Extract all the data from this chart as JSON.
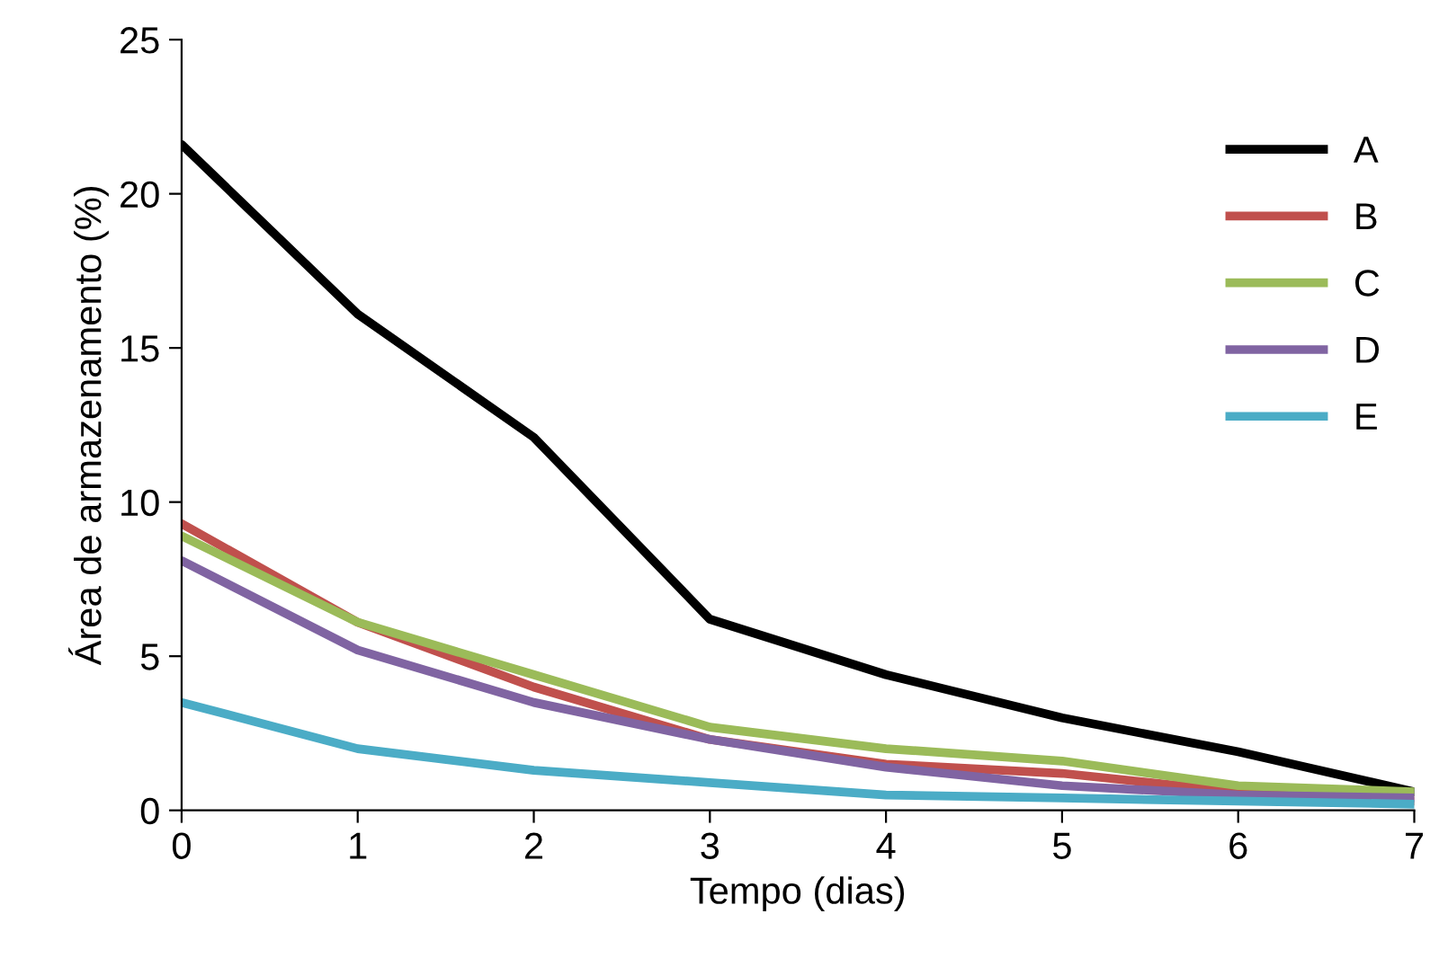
{
  "chart_data": {
    "type": "line",
    "xlabel": "Tempo (dias)",
    "ylabel": "Área de armazenamento (%)",
    "x": [
      0,
      1,
      2,
      3,
      4,
      5,
      6,
      7
    ],
    "xlim": [
      0,
      7
    ],
    "xticks": [
      0,
      1,
      2,
      3,
      4,
      5,
      6,
      7
    ],
    "ylim": [
      0,
      25
    ],
    "yticks": [
      0,
      5,
      10,
      15,
      20,
      25
    ],
    "grid": false,
    "legend": "right",
    "marker": "none",
    "line_style": "solid",
    "series": [
      {
        "name": "A",
        "color": "#000000",
        "values": [
          21.6,
          16.1,
          12.1,
          6.2,
          4.4,
          3.0,
          1.9,
          0.6
        ]
      },
      {
        "name": "B",
        "color": "#c0504d",
        "values": [
          9.3,
          6.1,
          4.0,
          2.3,
          1.5,
          1.2,
          0.6,
          0.3
        ]
      },
      {
        "name": "C",
        "color": "#9bbb59",
        "values": [
          8.9,
          6.1,
          4.4,
          2.7,
          2.0,
          1.6,
          0.8,
          0.6
        ]
      },
      {
        "name": "D",
        "color": "#8064a2",
        "values": [
          8.1,
          5.2,
          3.5,
          2.3,
          1.4,
          0.8,
          0.5,
          0.4
        ]
      },
      {
        "name": "E",
        "color": "#4bacc6",
        "values": [
          3.5,
          2.0,
          1.3,
          0.9,
          0.5,
          0.4,
          0.3,
          0.2
        ]
      }
    ]
  }
}
